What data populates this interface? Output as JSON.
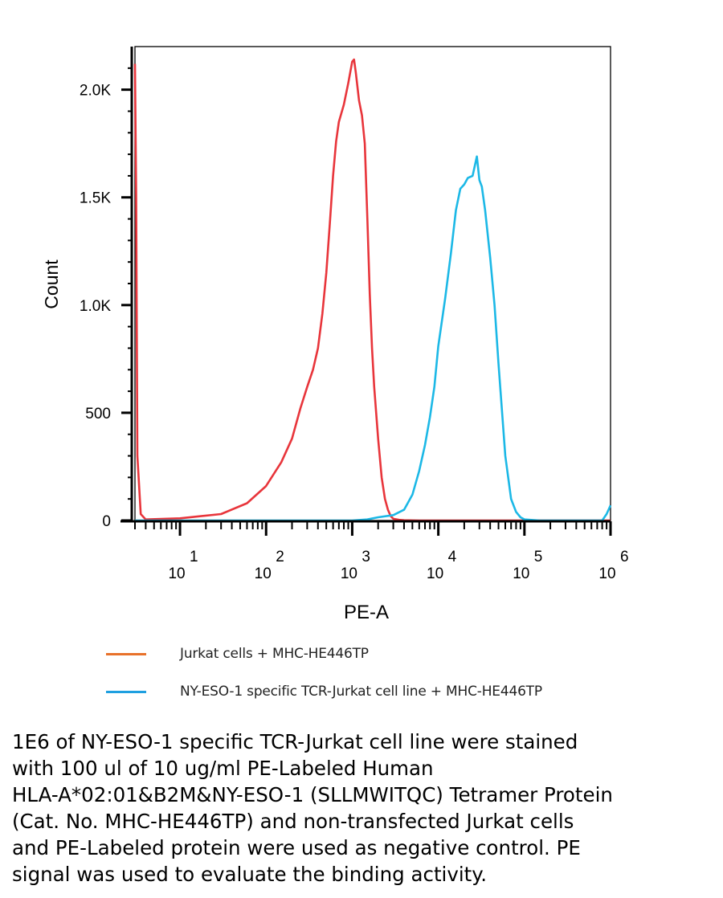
{
  "chart_data": {
    "type": "line",
    "xlabel": "PE-A",
    "ylabel": "Count",
    "x_scale": "log",
    "xlim": [
      3,
      1000000
    ],
    "ylim": [
      0,
      2200
    ],
    "x_ticks": [
      {
        "value": 10,
        "base": "10",
        "exp": "1"
      },
      {
        "value": 100,
        "base": "10",
        "exp": "2"
      },
      {
        "value": 1000,
        "base": "10",
        "exp": "3"
      },
      {
        "value": 10000,
        "base": "10",
        "exp": "4"
      },
      {
        "value": 100000,
        "base": "10",
        "exp": "5"
      },
      {
        "value": 1000000,
        "base": "10",
        "exp": "6"
      }
    ],
    "y_ticks": [
      {
        "value": 0,
        "label": "0"
      },
      {
        "value": 500,
        "label": "500"
      },
      {
        "value": 1000,
        "label": "1.0K"
      },
      {
        "value": 1500,
        "label": "1.5K"
      },
      {
        "value": 2000,
        "label": "2.0K"
      }
    ],
    "grid": false,
    "legend_position": "bottom",
    "series": [
      {
        "name": "Jurkat cells + MHC-HE446TP",
        "color": "#e8353b",
        "x": [
          3,
          3.1,
          3.2,
          3.5,
          4,
          10,
          30,
          60,
          100,
          150,
          200,
          250,
          300,
          350,
          400,
          450,
          500,
          550,
          600,
          650,
          700,
          800,
          900,
          1000,
          1050,
          1100,
          1200,
          1300,
          1400,
          1500,
          1600,
          1700,
          1800,
          2000,
          2200,
          2400,
          2600,
          2800,
          3000,
          3500,
          4000,
          6000,
          10000,
          30000,
          100000,
          300000,
          1000000
        ],
        "y": [
          2120,
          1500,
          300,
          30,
          5,
          10,
          30,
          80,
          160,
          270,
          380,
          520,
          620,
          700,
          800,
          960,
          1150,
          1380,
          1600,
          1760,
          1850,
          1930,
          2030,
          2130,
          2140,
          2080,
          1950,
          1880,
          1750,
          1400,
          1050,
          800,
          620,
          380,
          200,
          100,
          50,
          20,
          8,
          3,
          1,
          0,
          0,
          0,
          0,
          0,
          0
        ]
      },
      {
        "name": "NY-ESO-1 specific TCR-Jurkat cell line + MHC-HE446TP",
        "color": "#1cb8e6",
        "x": [
          3,
          10,
          100,
          1000,
          1500,
          2000,
          3000,
          4000,
          5000,
          6000,
          7000,
          8000,
          9000,
          10000,
          12000,
          14000,
          16000,
          18000,
          20000,
          22000,
          25000,
          28000,
          30000,
          32000,
          35000,
          40000,
          45000,
          50000,
          60000,
          70000,
          80000,
          90000,
          100000,
          150000,
          200000,
          400000,
          800000,
          900000,
          1000000
        ],
        "y": [
          0,
          0,
          0,
          0,
          5,
          15,
          25,
          50,
          120,
          230,
          350,
          480,
          620,
          810,
          1030,
          1240,
          1440,
          1540,
          1560,
          1590,
          1600,
          1690,
          1580,
          1550,
          1440,
          1220,
          1000,
          730,
          300,
          100,
          40,
          15,
          5,
          0,
          0,
          0,
          0,
          30,
          70
        ]
      }
    ]
  },
  "legend": [
    {
      "label": "Jurkat cells + MHC-HE446TP",
      "color": "#e8712a"
    },
    {
      "label": "NY-ESO-1 specific TCR-Jurkat cell line + MHC-HE446TP",
      "color": "#1e9fe0"
    }
  ],
  "caption": {
    "lines": [
      "1E6 of NY-ESO-1 specific TCR-Jurkat cell line were stained",
      "with 100 ul of 10 ug/ml PE-Labeled Human",
      "HLA-A*02:01&B2M&NY-ESO-1 (SLLMWITQC) Tetramer Protein",
      "(Cat. No. MHC-HE446TP) and non-transfected Jurkat cells",
      "and PE-Labeled protein were used as negative control. PE",
      "signal was used to evaluate the binding activity."
    ]
  }
}
